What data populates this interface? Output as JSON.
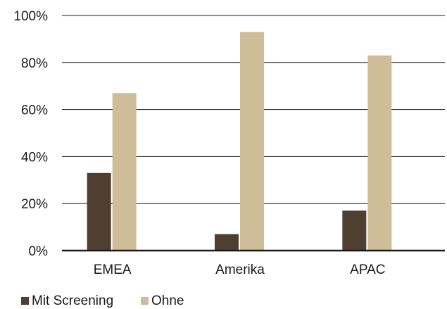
{
  "chart_data": {
    "type": "bar",
    "title": "",
    "xlabel": "",
    "ylabel": "",
    "categories": [
      "EMEA",
      "Amerika",
      "APAC"
    ],
    "series": [
      {
        "name": "Mit Screening",
        "values": [
          33,
          7,
          17
        ],
        "color": "#4f3f31"
      },
      {
        "name": "Ohne",
        "values": [
          67,
          93,
          83
        ],
        "color": "#cfbd9a"
      }
    ],
    "ylim": [
      0,
      100
    ],
    "yticks": [
      0,
      20,
      40,
      60,
      80,
      100
    ],
    "ytick_labels": [
      "0%",
      "20%",
      "40%",
      "60%",
      "80%",
      "100%"
    ],
    "grid": true,
    "legend": "bottom-left",
    "colors": {
      "gridline": "#1a1a1a",
      "axis": "#1a1a1a",
      "text": "#1a1a1a"
    }
  }
}
